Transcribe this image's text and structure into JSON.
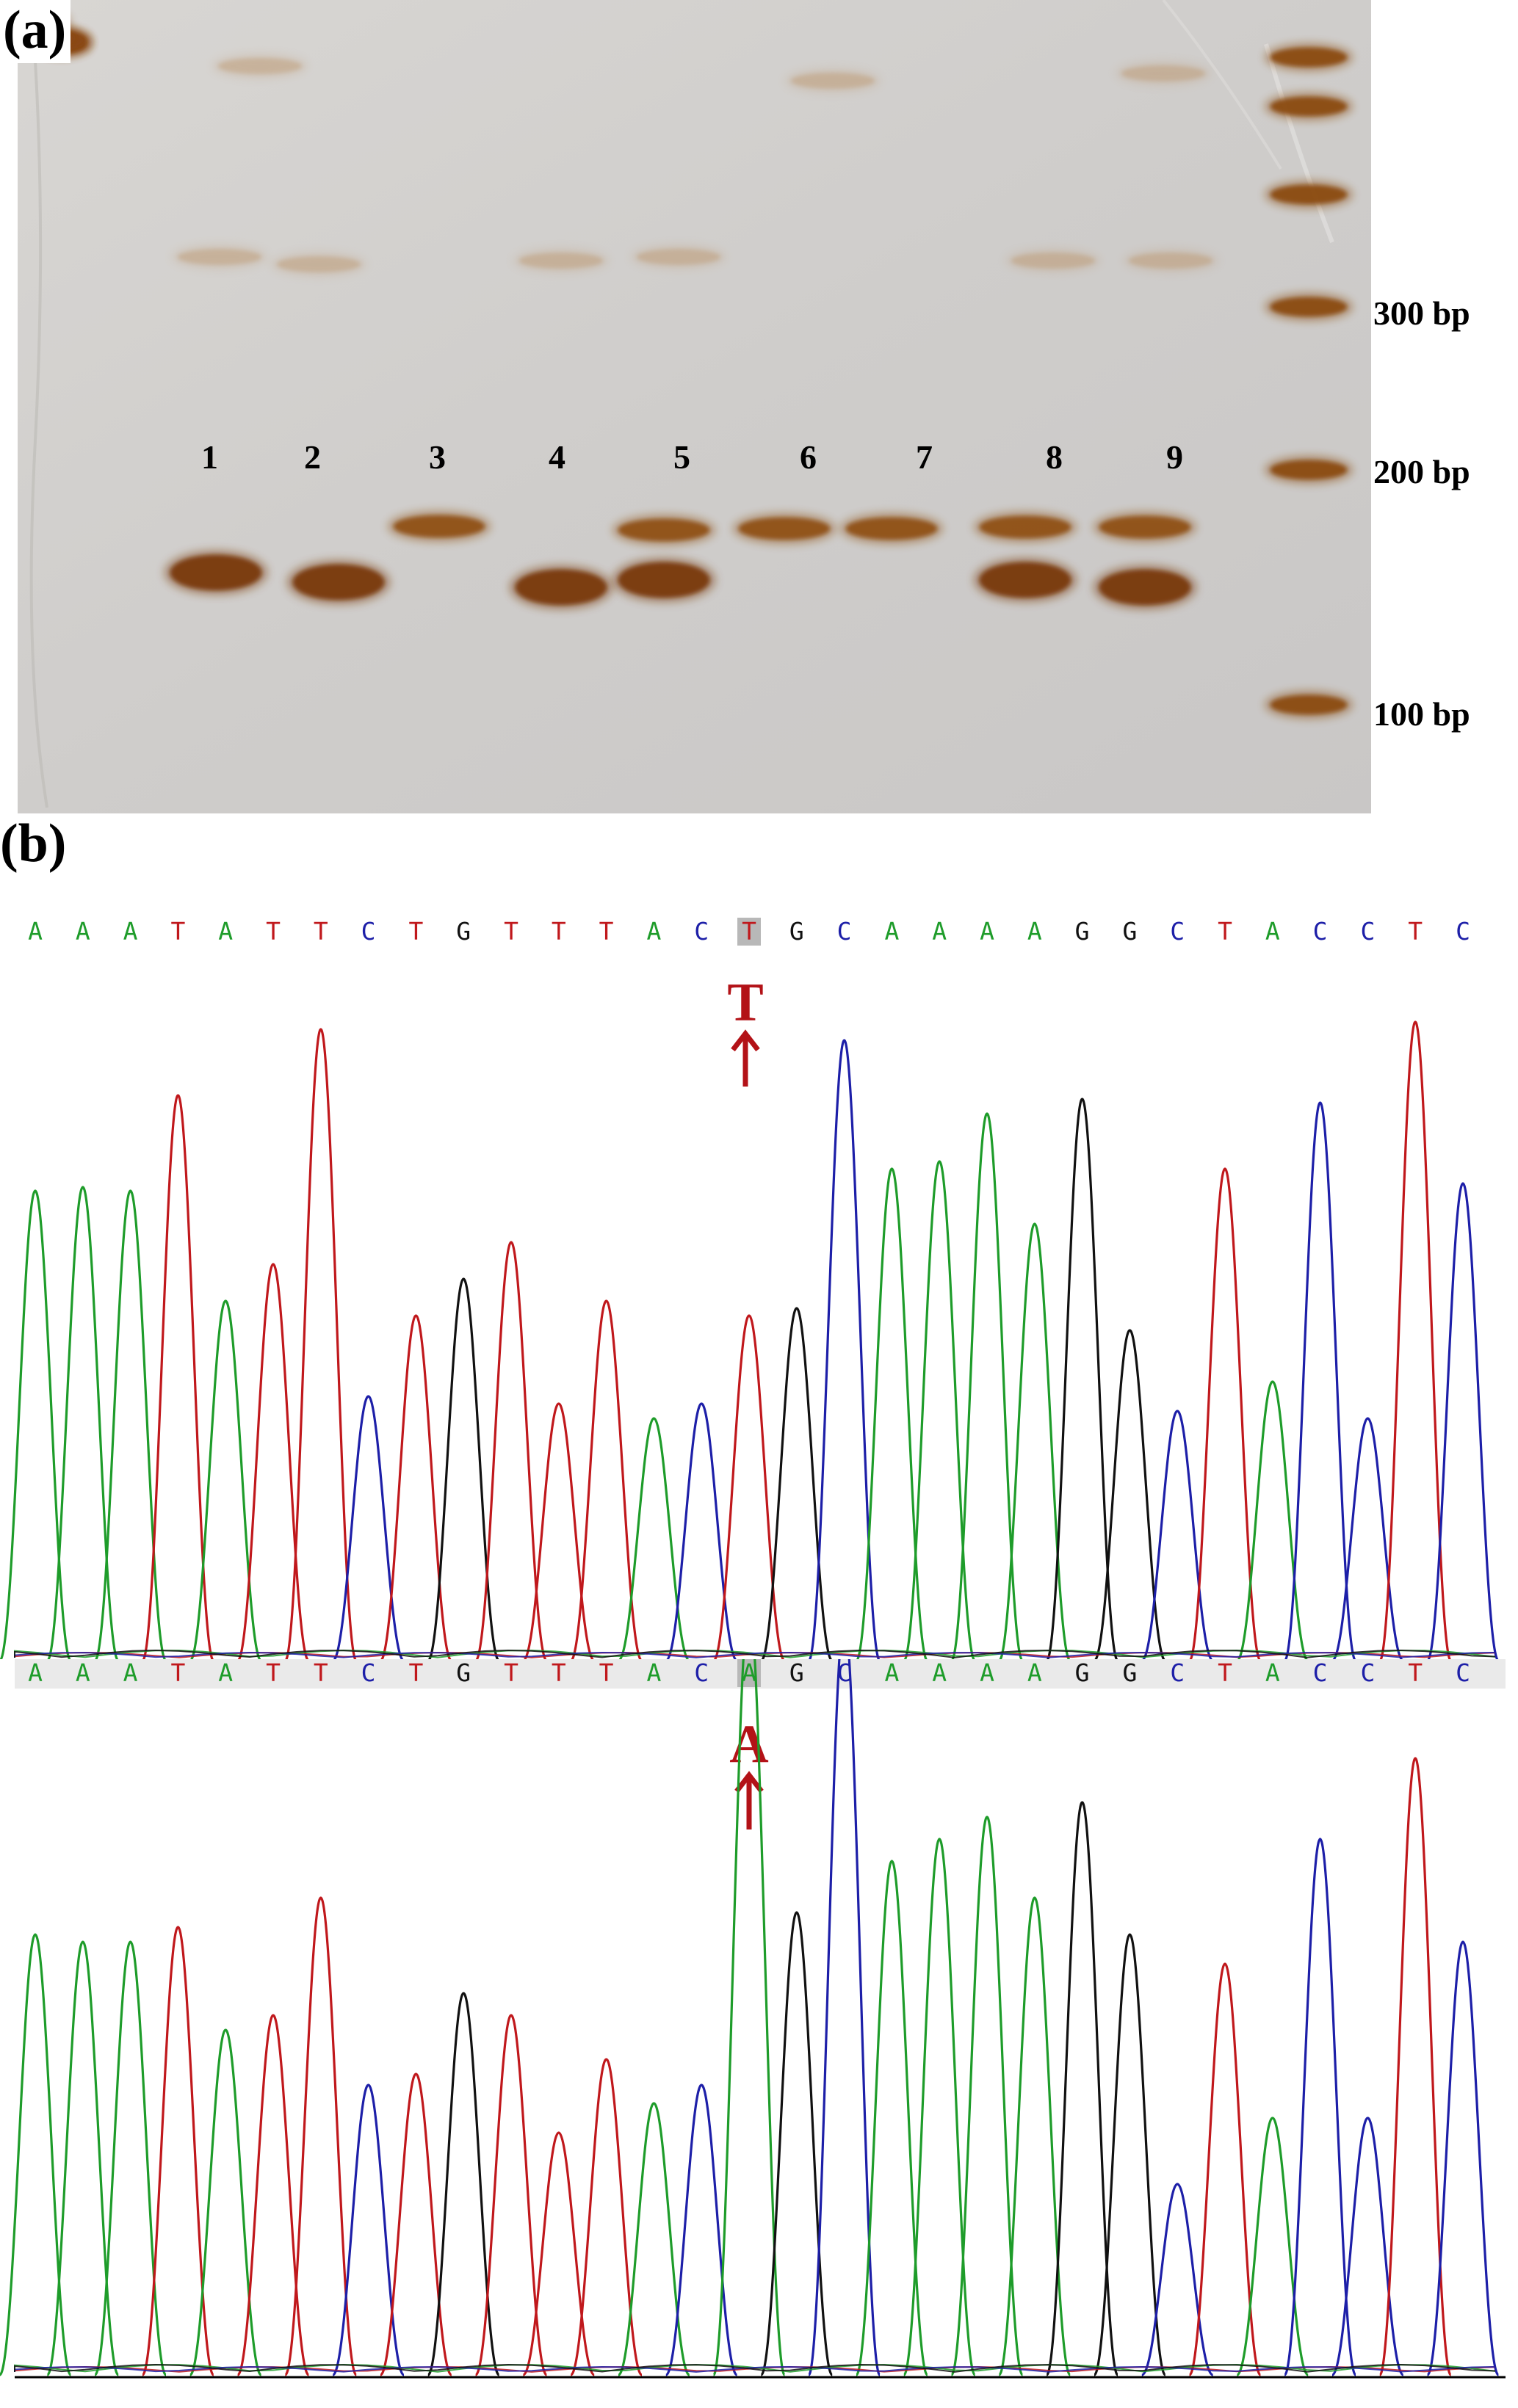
{
  "panel_a": {
    "label": "(a)",
    "lane_labels": [
      "1",
      "2",
      "3",
      "4",
      "5",
      "6",
      "7",
      "8",
      "9"
    ],
    "bp_labels": [
      "300 bp",
      "200 bp",
      "100 bp"
    ]
  },
  "panel_b": {
    "label": "(b)",
    "top_trace": {
      "sequence": [
        "A",
        "A",
        "A",
        "T",
        "A",
        "T",
        "T",
        "C",
        "T",
        "G",
        "T",
        "T",
        "T",
        "A",
        "C",
        "T",
        "G",
        "C",
        "A",
        "A",
        "A",
        "A",
        "G",
        "G",
        "C",
        "T",
        "A",
        "C",
        "C",
        "T",
        "C"
      ],
      "highlight_index": 15,
      "marker_letter": "T"
    },
    "bottom_trace": {
      "sequence": [
        "A",
        "A",
        "A",
        "T",
        "A",
        "T",
        "T",
        "C",
        "T",
        "G",
        "T",
        "T",
        "T",
        "A",
        "C",
        "A",
        "G",
        "C",
        "A",
        "A",
        "A",
        "A",
        "G",
        "G",
        "C",
        "T",
        "A",
        "C",
        "C",
        "T",
        "C"
      ],
      "highlight_index": 15,
      "marker_letter": "A"
    },
    "base_colors": {
      "A": "#1e9c2a",
      "T": "#c0181c",
      "C": "#1d1fa8",
      "G": "#111111"
    },
    "marker_color": "#b31217"
  }
}
